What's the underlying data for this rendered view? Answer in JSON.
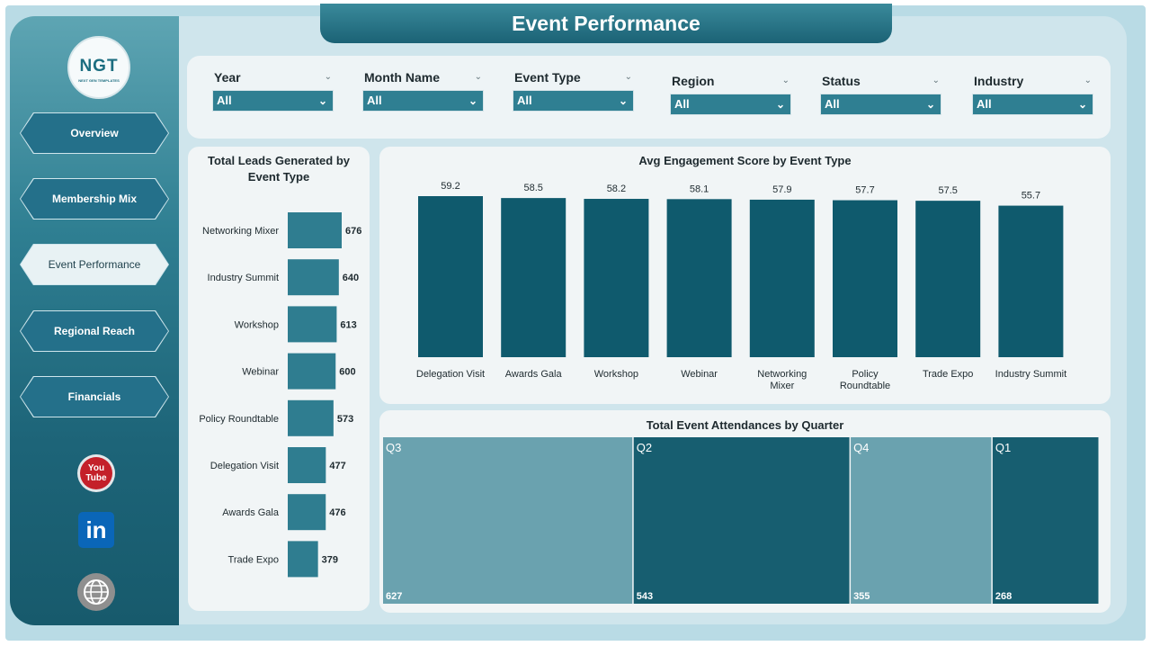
{
  "app_title": "Event Performance",
  "logo": {
    "main": "NGT",
    "sub": "NEXT GEN TEMPLATES"
  },
  "nav": [
    {
      "label": "Overview",
      "active": false
    },
    {
      "label": "Membership Mix",
      "active": false
    },
    {
      "label": "Event Performance",
      "active": true
    },
    {
      "label": "Regional Reach",
      "active": false
    },
    {
      "label": "Financials",
      "active": false
    }
  ],
  "social": {
    "youtube_top": "You",
    "youtube_bottom": "Tube",
    "linkedin": "in",
    "icons": [
      "youtube-icon",
      "linkedin-icon",
      "globe-icon"
    ]
  },
  "filters": [
    {
      "label": "Year",
      "value": "All"
    },
    {
      "label": "Month Name",
      "value": "All"
    },
    {
      "label": "Event Type",
      "value": "All"
    },
    {
      "label": "Region",
      "value": "All"
    },
    {
      "label": "Status",
      "value": "All"
    },
    {
      "label": "Industry",
      "value": "All"
    }
  ],
  "colors": {
    "sidebar": "#24708a",
    "bar_dark": "#0f5a6d",
    "bar_mid": "#2f7d90",
    "tree_light": "#6aa2af",
    "tree_dark": "#175e70"
  },
  "chart_data": [
    {
      "type": "bar",
      "orientation": "horizontal",
      "title": "Total Leads Generated by Event Type",
      "categories": [
        "Networking Mixer",
        "Industry Summit",
        "Workshop",
        "Webinar",
        "Policy Roundtable",
        "Delegation Visit",
        "Awards Gala",
        "Trade Expo"
      ],
      "values": [
        676,
        640,
        613,
        600,
        573,
        477,
        476,
        379
      ]
    },
    {
      "type": "bar",
      "orientation": "vertical",
      "title": "Avg Engagement Score by Event Type",
      "categories": [
        "Delegation Visit",
        "Awards Gala",
        "Workshop",
        "Webinar",
        "Networking Mixer",
        "Policy Roundtable",
        "Trade Expo",
        "Industry Summit"
      ],
      "values": [
        59.2,
        58.5,
        58.2,
        58.1,
        57.9,
        57.7,
        57.5,
        55.7
      ]
    },
    {
      "type": "treemap",
      "title": "Total Event Attendances by Quarter",
      "categories": [
        "Q3",
        "Q2",
        "Q4",
        "Q1"
      ],
      "values": [
        627,
        543,
        355,
        268
      ]
    }
  ]
}
